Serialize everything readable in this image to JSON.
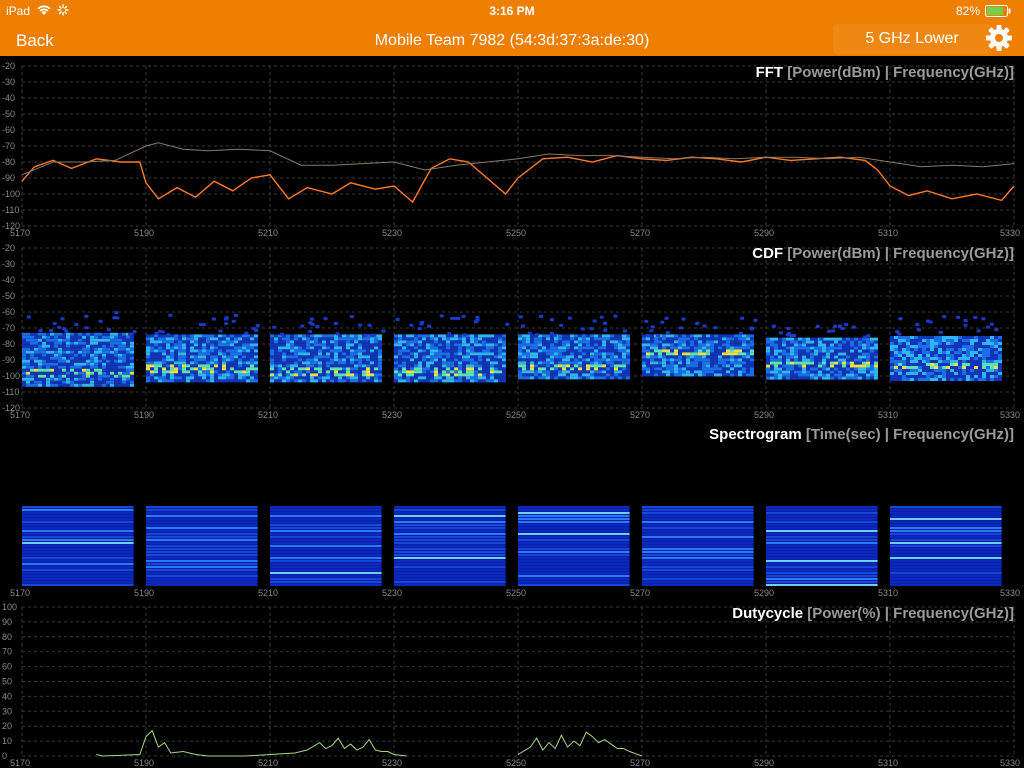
{
  "status_bar": {
    "device": "iPad",
    "time": "3:16 PM",
    "battery": "82%"
  },
  "nav": {
    "back_label": "Back",
    "title": "Mobile Team 7982 (54:3d:37:3a:de:30)",
    "band_label": "5 GHz Lower"
  },
  "icons": {
    "wifi": "wifi-icon",
    "activity": "activity-spinner-icon",
    "battery": "battery-icon",
    "settings": "gear-icon"
  },
  "colors": {
    "header": "#ee7f00",
    "fft_line": "#ff7a2a",
    "fft_max_line": "#8a7a62",
    "duty_line": "#a7d97f",
    "grid": "#3a3a3a"
  },
  "panels": {
    "fft": {
      "title": "FFT",
      "subtitle": "[Power(dBm) | Frequency(GHz)]"
    },
    "cdf": {
      "title": "CDF",
      "subtitle": "[Power(dBm) | Frequency(GHz)]"
    },
    "spectrogram": {
      "title": "Spectrogram",
      "subtitle": "[Time(sec) | Frequency(GHz)]"
    },
    "dutycycle": {
      "title": "Dutycycle",
      "subtitle": "[Power(%) | Frequency(GHz)]"
    }
  },
  "chart_data": [
    {
      "type": "line",
      "name": "FFT",
      "x_ticks": [
        5170,
        5190,
        5210,
        5230,
        5250,
        5270,
        5290,
        5310,
        5330
      ],
      "y_ticks": [
        -20,
        -30,
        -40,
        -50,
        -60,
        -70,
        -80,
        -90,
        -100,
        -110,
        -120
      ],
      "xlim": [
        5170,
        5330
      ],
      "ylim": [
        -120,
        -20
      ],
      "grid": true,
      "series": [
        {
          "x": [
            5170,
            5172,
            5175,
            5178,
            5182,
            5186,
            5189,
            5190,
            5192,
            5195,
            5198,
            5201,
            5204,
            5207,
            5210,
            5213,
            5216,
            5220,
            5223,
            5227,
            5230,
            5233,
            5236,
            5239,
            5242,
            5245,
            5248,
            5250,
            5254,
            5258,
            5262,
            5266,
            5270,
            5274,
            5278,
            5282,
            5286,
            5290,
            5294,
            5298,
            5302,
            5306,
            5308,
            5310,
            5313,
            5316,
            5320,
            5324,
            5328,
            5330
          ],
          "y": [
            -92,
            -83,
            -79,
            -84,
            -78,
            -80,
            -80,
            -93,
            -103,
            -96,
            -102,
            -92,
            -98,
            -90,
            -88,
            -103,
            -96,
            -100,
            -93,
            -97,
            -95,
            -105,
            -84,
            -78,
            -80,
            -90,
            -100,
            -90,
            -78,
            -77,
            -80,
            -76,
            -78,
            -79,
            -77,
            -78,
            -80,
            -77,
            -79,
            -78,
            -77,
            -79,
            -85,
            -95,
            -101,
            -98,
            -103,
            -100,
            -104,
            -95
          ]
        },
        {
          "x": [
            5170,
            5175,
            5180,
            5185,
            5190,
            5192,
            5196,
            5200,
            5205,
            5210,
            5215,
            5220,
            5225,
            5230,
            5235,
            5240,
            5245,
            5250,
            5255,
            5260,
            5265,
            5270,
            5275,
            5280,
            5285,
            5290,
            5295,
            5300,
            5305,
            5310,
            5315,
            5320,
            5325,
            5330
          ],
          "y": [
            -88,
            -80,
            -80,
            -79,
            -70,
            -68,
            -72,
            -73,
            -72,
            -73,
            -82,
            -82,
            -81,
            -80,
            -85,
            -82,
            -80,
            -78,
            -75,
            -76,
            -76,
            -77,
            -78,
            -77,
            -78,
            -77,
            -77,
            -78,
            -77,
            -80,
            -83,
            -82,
            -83,
            -81
          ]
        }
      ]
    },
    {
      "type": "heatmap",
      "name": "CDF",
      "x_ticks": [
        5170,
        5190,
        5210,
        5230,
        5250,
        5270,
        5290,
        5310,
        5330
      ],
      "y_ticks": [
        -20,
        -30,
        -40,
        -50,
        -60,
        -70,
        -80,
        -90,
        -100,
        -110,
        -120
      ],
      "xlim": [
        5170,
        5330
      ],
      "ylim": [
        -120,
        -20
      ],
      "channels": [
        {
          "from": 5170,
          "to": 5188,
          "top": -73,
          "bottom": -106,
          "peak": -97
        },
        {
          "from": 5190,
          "to": 5208,
          "top": -74,
          "bottom": -103,
          "peak": -95
        },
        {
          "from": 5210,
          "to": 5228,
          "top": -74,
          "bottom": -104,
          "peak": -97
        },
        {
          "from": 5230,
          "to": 5248,
          "top": -74,
          "bottom": -104,
          "peak": -96
        },
        {
          "from": 5250,
          "to": 5268,
          "top": -74,
          "bottom": -102,
          "peak": -94
        },
        {
          "from": 5270,
          "to": 5288,
          "top": -74,
          "bottom": -100,
          "peak": -84
        },
        {
          "from": 5290,
          "to": 5308,
          "top": -76,
          "bottom": -102,
          "peak": -92
        },
        {
          "from": 5310,
          "to": 5328,
          "top": -75,
          "bottom": -102,
          "peak": -93
        }
      ]
    },
    {
      "type": "heatmap",
      "name": "Spectrogram",
      "x_ticks": [
        5170,
        5190,
        5210,
        5230,
        5250,
        5270,
        5290,
        5310,
        5330
      ],
      "xlim": [
        5170,
        5330
      ],
      "channels": [
        {
          "from": 5170,
          "to": 5188
        },
        {
          "from": 5190,
          "to": 5208
        },
        {
          "from": 5210,
          "to": 5228
        },
        {
          "from": 5230,
          "to": 5248
        },
        {
          "from": 5250,
          "to": 5268
        },
        {
          "from": 5270,
          "to": 5288
        },
        {
          "from": 5290,
          "to": 5308
        },
        {
          "from": 5310,
          "to": 5328
        }
      ]
    },
    {
      "type": "line",
      "name": "Dutycycle",
      "x_ticks": [
        5170,
        5190,
        5210,
        5230,
        5250,
        5270,
        5290,
        5310,
        5330
      ],
      "y_ticks": [
        100,
        90,
        80,
        70,
        60,
        50,
        40,
        30,
        20,
        10,
        0
      ],
      "xlim": [
        5170,
        5330
      ],
      "ylim": [
        0,
        100
      ],
      "grid": true,
      "series": [
        {
          "x": [
            5182,
            5183,
            5189,
            5190,
            5191,
            5192,
            5193,
            5194,
            5196,
            5198,
            5200,
            5206,
            5210,
            5214,
            5216,
            5218,
            5219,
            5220,
            5221,
            5222,
            5223,
            5224,
            5225,
            5226,
            5227,
            5228,
            5229,
            5230,
            5232,
            5250,
            5252,
            5253,
            5254,
            5255,
            5256,
            5257,
            5258,
            5259,
            5260,
            5261,
            5262,
            5263,
            5264,
            5265,
            5266,
            5267,
            5268,
            5270
          ],
          "y": [
            1,
            0,
            1,
            13,
            17,
            6,
            9,
            2,
            3,
            1,
            0,
            0,
            1,
            2,
            4,
            9,
            5,
            7,
            12,
            5,
            8,
            4,
            6,
            11,
            4,
            3,
            3,
            1,
            0,
            1,
            6,
            12,
            4,
            9,
            5,
            14,
            6,
            10,
            7,
            16,
            13,
            9,
            11,
            8,
            5,
            5,
            3,
            0
          ]
        }
      ]
    }
  ]
}
